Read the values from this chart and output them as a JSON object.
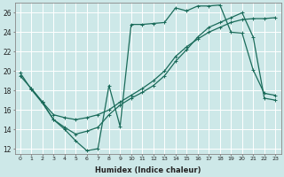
{
  "xlabel": "Humidex (Indice chaleur)",
  "xlim": [
    -0.5,
    23.5
  ],
  "ylim": [
    11.5,
    27
  ],
  "yticks": [
    12,
    14,
    16,
    18,
    20,
    22,
    24,
    26
  ],
  "xticks": [
    0,
    1,
    2,
    3,
    4,
    5,
    6,
    7,
    8,
    9,
    10,
    11,
    12,
    13,
    14,
    15,
    16,
    17,
    18,
    19,
    20,
    21,
    22,
    23
  ],
  "bg_color": "#cde8e8",
  "grid_color": "#b0d8d8",
  "line_color": "#1a6b5a",
  "line1_x": [
    0,
    1,
    2,
    3,
    4,
    5,
    6,
    7,
    8,
    9,
    10,
    11,
    12,
    13,
    14,
    15,
    16,
    17,
    18,
    19,
    20,
    21,
    22,
    23
  ],
  "line1_y": [
    19.8,
    18.1,
    16.7,
    15.0,
    14.0,
    12.8,
    11.8,
    12.0,
    18.5,
    14.3,
    24.8,
    24.8,
    24.9,
    25.0,
    26.5,
    26.2,
    26.7,
    26.7,
    26.8,
    24.0,
    23.9,
    20.1,
    17.7,
    17.5
  ],
  "line2_x": [
    0,
    1,
    2,
    3,
    4,
    5,
    6,
    7,
    8,
    9,
    10,
    11,
    12,
    13,
    14,
    15,
    16,
    17,
    18,
    19,
    20,
    21,
    22,
    23
  ],
  "line2_y": [
    19.5,
    18.2,
    16.8,
    15.5,
    15.2,
    15.0,
    15.2,
    15.5,
    16.0,
    16.8,
    17.5,
    18.2,
    19.0,
    20.0,
    21.5,
    22.5,
    23.3,
    24.0,
    24.5,
    25.0,
    25.3,
    25.4,
    25.4,
    25.5
  ],
  "line3_x": [
    1,
    2,
    3,
    4,
    5,
    6,
    7,
    8,
    9,
    10,
    11,
    12,
    13,
    14,
    15,
    16,
    17,
    18,
    19,
    20,
    21,
    22,
    23
  ],
  "line3_y": [
    18.2,
    16.8,
    15.0,
    14.2,
    13.5,
    13.8,
    14.2,
    15.5,
    16.5,
    17.2,
    17.8,
    18.5,
    19.5,
    21.0,
    22.2,
    23.5,
    24.5,
    25.0,
    25.5,
    26.0,
    23.5,
    17.2,
    17.0
  ]
}
